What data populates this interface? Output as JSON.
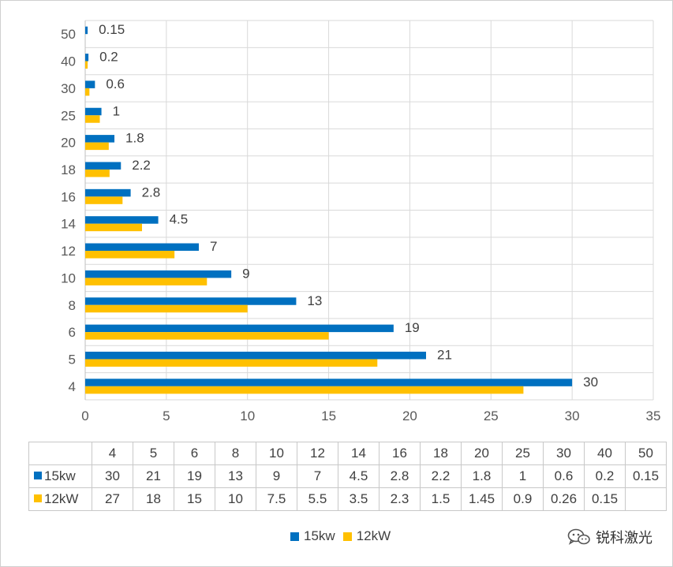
{
  "chart_data": {
    "type": "bar",
    "orientation": "horizontal",
    "categories": [
      "4",
      "5",
      "6",
      "8",
      "10",
      "12",
      "14",
      "16",
      "18",
      "20",
      "25",
      "30",
      "40",
      "50"
    ],
    "series": [
      {
        "name": "15kw",
        "color": "#0070C0",
        "values": [
          30,
          21,
          19,
          13,
          9,
          7,
          4.5,
          2.8,
          2.2,
          1.8,
          1,
          0.6,
          0.2,
          0.15
        ]
      },
      {
        "name": "12kW",
        "color": "#FFC000",
        "values": [
          27,
          18,
          15,
          10,
          7.5,
          5.5,
          3.5,
          2.3,
          1.5,
          1.45,
          0.9,
          0.26,
          0.15,
          null
        ]
      }
    ],
    "xlim": [
      0,
      35
    ],
    "xticks": [
      0,
      5,
      10,
      15,
      20,
      25,
      30,
      35
    ],
    "grid": true,
    "data_labels_series": "15kw",
    "legend_position": "bottom",
    "title": "",
    "xlabel": "",
    "ylabel": ""
  },
  "table": {
    "header": [
      "4",
      "5",
      "6",
      "8",
      "10",
      "12",
      "14",
      "16",
      "18",
      "20",
      "25",
      "30",
      "40",
      "50"
    ],
    "rows": [
      {
        "label": "15kw",
        "color": "#0070C0",
        "values": [
          "30",
          "21",
          "19",
          "13",
          "9",
          "7",
          "4.5",
          "2.8",
          "2.2",
          "1.8",
          "1",
          "0.6",
          "0.2",
          "0.15"
        ]
      },
      {
        "label": "12kW",
        "color": "#FFC000",
        "values": [
          "27",
          "18",
          "15",
          "10",
          "7.5",
          "5.5",
          "3.5",
          "2.3",
          "1.5",
          "1.45",
          "0.9",
          "0.26",
          "0.15",
          ""
        ]
      }
    ]
  },
  "legend": {
    "items": [
      {
        "label": "15kw",
        "color": "#0070C0"
      },
      {
        "label": "12kW",
        "color": "#FFC000"
      }
    ]
  },
  "watermark": {
    "text": "锐科激光",
    "icon": "wechat-icon"
  }
}
